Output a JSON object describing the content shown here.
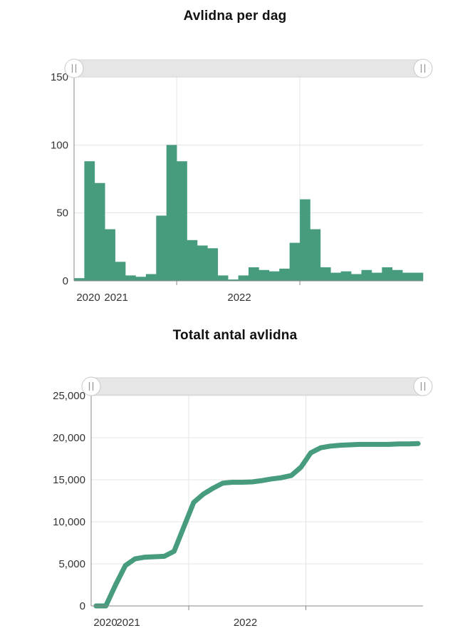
{
  "chart_data": [
    {
      "type": "bar",
      "title": "Avlidna per dag",
      "xlabel": "",
      "ylabel": "",
      "ylim": [
        0,
        150
      ],
      "yticks": [
        "0",
        "50",
        "100",
        "150"
      ],
      "yticks_values": [
        0,
        50,
        100,
        150
      ],
      "xticks": [
        "2020",
        "2021",
        "2022"
      ],
      "grid": true,
      "color": "#479c7d",
      "scrollbar": true,
      "x": [
        "2020-03",
        "2020-04",
        "2020-05",
        "2020-06",
        "2020-07",
        "2020-08",
        "2020-09",
        "2020-10",
        "2020-11",
        "2020-12",
        "2021-01",
        "2021-02",
        "2021-03",
        "2021-04",
        "2021-05",
        "2021-06",
        "2021-07",
        "2021-08",
        "2021-09",
        "2021-10",
        "2021-11",
        "2021-12",
        "2022-01",
        "2022-02",
        "2022-03",
        "2022-04",
        "2022-05",
        "2022-06",
        "2022-07",
        "2022-08",
        "2022-09",
        "2022-10",
        "2022-11",
        "2022-12"
      ],
      "values": [
        2,
        88,
        72,
        38,
        14,
        4,
        3,
        5,
        48,
        100,
        88,
        30,
        26,
        24,
        4,
        1,
        4,
        10,
        8,
        7,
        9,
        28,
        60,
        38,
        10,
        6,
        7,
        5,
        8,
        6,
        10,
        8,
        6,
        6
      ]
    },
    {
      "type": "line",
      "title": "Totalt antal avlidna",
      "xlabel": "",
      "ylabel": "",
      "ylim": [
        0,
        25000
      ],
      "yticks": [
        "0",
        "5,000",
        "10,000",
        "15,000",
        "20,000",
        "25,000"
      ],
      "yticks_values": [
        0,
        5000,
        10000,
        15000,
        20000,
        25000
      ],
      "xticks": [
        "2020",
        "2021",
        "2022"
      ],
      "grid": true,
      "color": "#479c7d",
      "scrollbar": true,
      "x": [
        "2020-03",
        "2020-04",
        "2020-05",
        "2020-06",
        "2020-07",
        "2020-08",
        "2020-09",
        "2020-10",
        "2020-11",
        "2020-12",
        "2021-01",
        "2021-02",
        "2021-03",
        "2021-04",
        "2021-05",
        "2021-06",
        "2021-07",
        "2021-08",
        "2021-09",
        "2021-10",
        "2021-11",
        "2021-12",
        "2022-01",
        "2022-02",
        "2022-03",
        "2022-04",
        "2022-05",
        "2022-06",
        "2022-07",
        "2022-08",
        "2022-09",
        "2022-10",
        "2022-11",
        "2022-12"
      ],
      "values": [
        0,
        0,
        2500,
        4800,
        5600,
        5800,
        5850,
        5900,
        6500,
        9400,
        12300,
        13300,
        14000,
        14600,
        14700,
        14700,
        14750,
        14900,
        15100,
        15250,
        15500,
        16500,
        18200,
        18800,
        19000,
        19100,
        19150,
        19200,
        19200,
        19200,
        19200,
        19250,
        19250,
        19300
      ]
    }
  ]
}
